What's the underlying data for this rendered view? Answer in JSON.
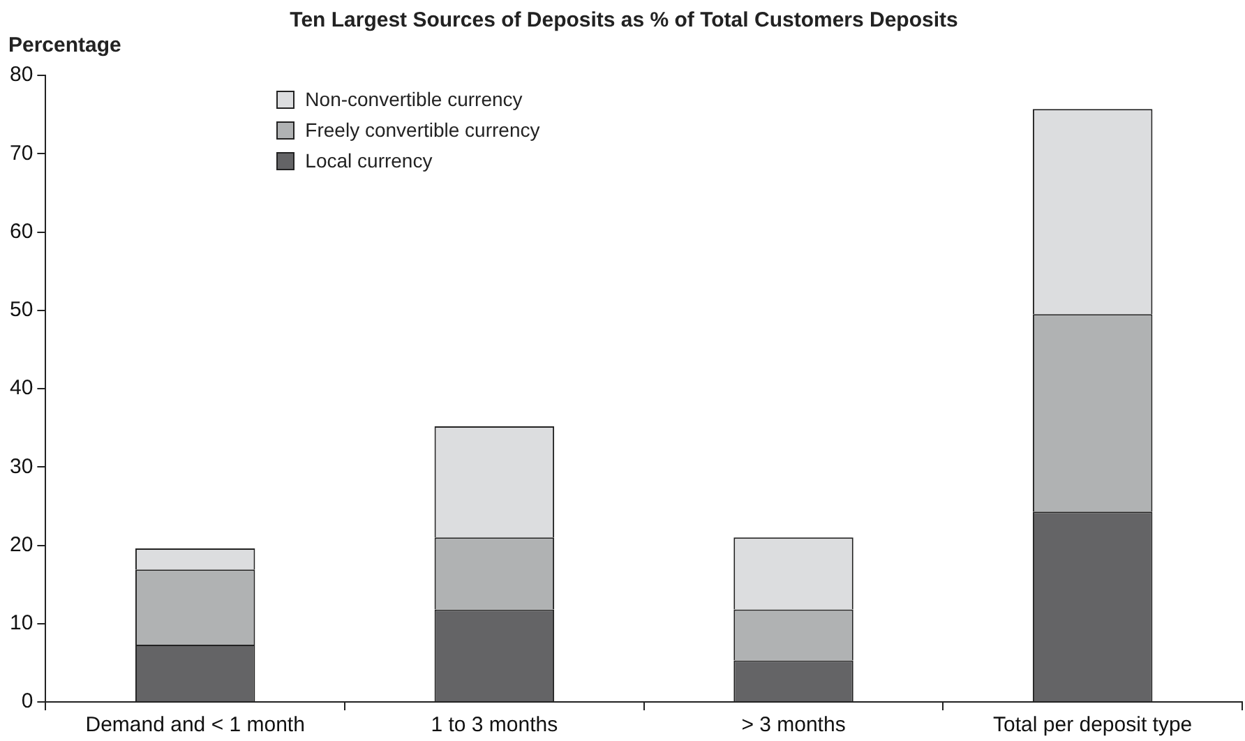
{
  "chart_data": {
    "type": "bar",
    "title": "Ten Largest Sources of Deposits as % of Total Customers Deposits",
    "ylabel": "Percentage",
    "categories": [
      "Demand and < 1 month",
      "1 to 3 months",
      "> 3 months",
      "Total per deposit type"
    ],
    "series": [
      {
        "name": "Local currency",
        "color": "#646466",
        "values": [
          7.3,
          11.8,
          5.3,
          24.3
        ]
      },
      {
        "name": "Freely convertible currency",
        "color": "#b0b2b3",
        "values": [
          9.6,
          9.2,
          6.5,
          25.2
        ]
      },
      {
        "name": "Non-convertible currency",
        "color": "#dcdddf",
        "values": [
          2.7,
          14.2,
          9.2,
          26.2
        ]
      }
    ],
    "stacked": true,
    "ylim": [
      0,
      80
    ],
    "yticks": [
      0,
      10,
      20,
      30,
      40,
      50,
      60,
      70,
      80
    ],
    "grid": false,
    "legend": "top left"
  }
}
